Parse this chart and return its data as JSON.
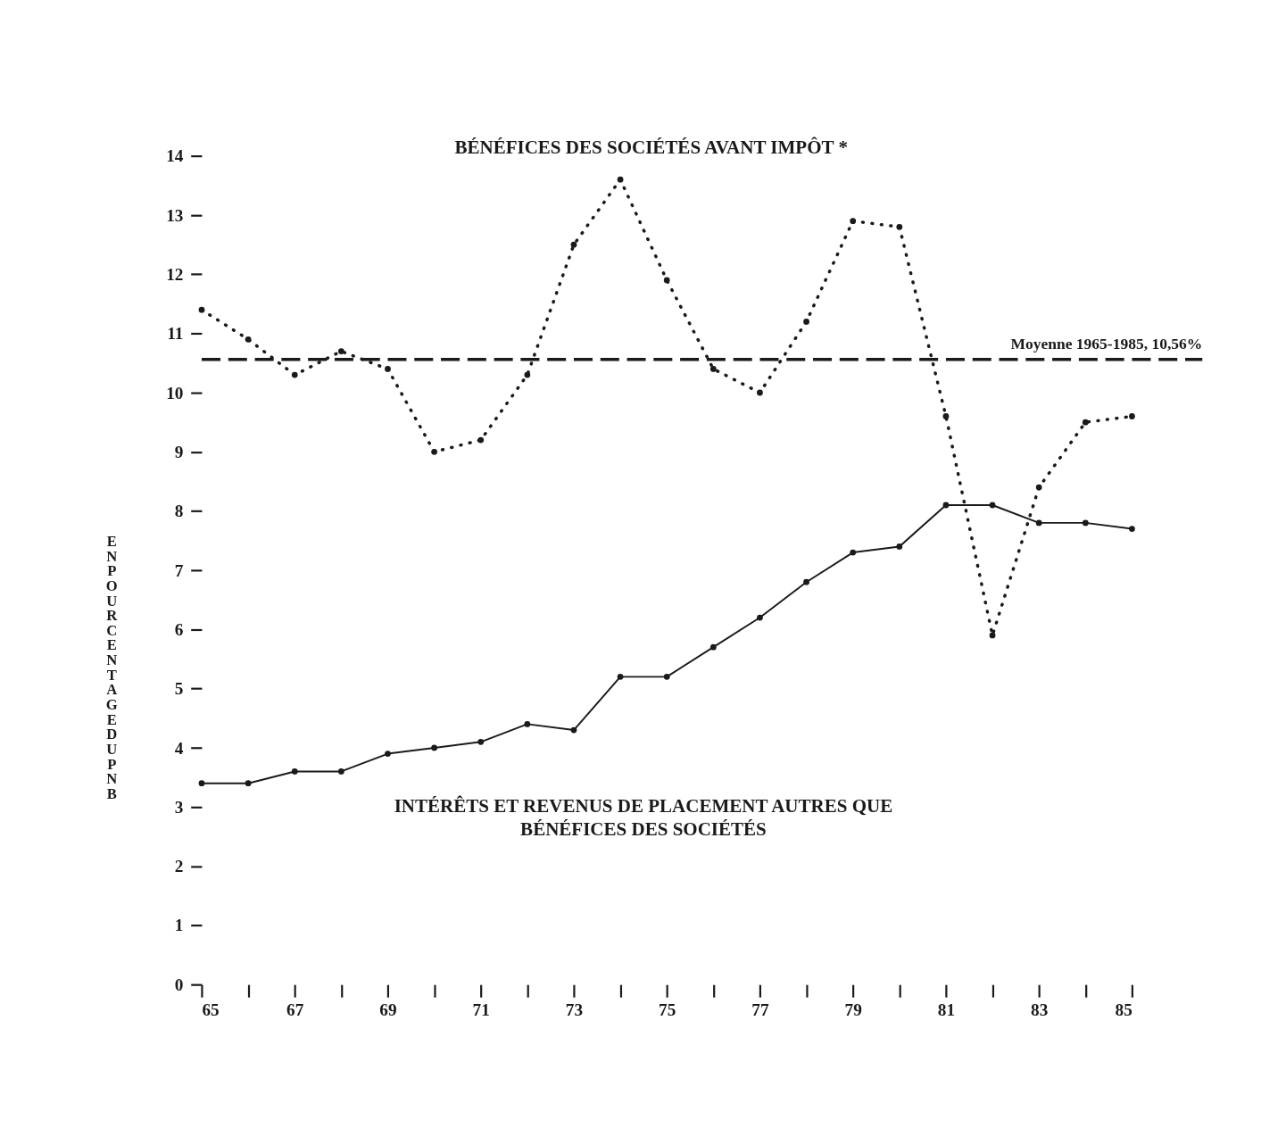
{
  "chart_data": {
    "type": "line",
    "ylabel": "EN POURCENTAGE DU PNB",
    "x": [
      65,
      66,
      67,
      68,
      69,
      70,
      71,
      72,
      73,
      74,
      75,
      76,
      77,
      78,
      79,
      80,
      81,
      82,
      83,
      84,
      85
    ],
    "series": [
      {
        "name": "BÉNÉFICES DES SOCIÉTÉS AVANT IMPÔT *",
        "color": "#1a1a1a",
        "line_style": "dotted",
        "values": [
          11.4,
          10.9,
          10.3,
          10.7,
          10.4,
          9.0,
          9.2,
          10.3,
          12.5,
          13.6,
          11.9,
          10.4,
          10.0,
          11.2,
          12.9,
          12.8,
          9.6,
          5.9,
          8.4,
          9.5,
          9.6
        ]
      },
      {
        "name": "INTÉRÊTS ET REVENUS DE PLACEMENT AUTRES QUE BÉNÉFICES DES SOCIÉTÉS",
        "color": "#1a1a1a",
        "line_style": "solid",
        "values": [
          3.4,
          3.4,
          3.6,
          3.6,
          3.9,
          4.0,
          4.1,
          4.4,
          4.3,
          5.2,
          5.2,
          5.7,
          6.2,
          6.8,
          7.3,
          7.4,
          8.1,
          8.1,
          7.8,
          7.8,
          7.7
        ]
      }
    ],
    "marker": "circle",
    "xlim": [
      65,
      85
    ],
    "xticks": [
      65,
      {
        "value": 66,
        "label": null
      },
      67,
      {
        "value": 68,
        "label": null
      },
      69,
      {
        "value": 70,
        "label": null
      },
      71,
      {
        "value": 72,
        "label": null
      },
      73,
      {
        "value": 74,
        "label": null
      },
      75,
      {
        "value": 76,
        "label": null
      },
      77,
      {
        "value": 78,
        "label": null
      },
      79,
      {
        "value": 80,
        "label": null
      },
      81,
      {
        "value": 82,
        "label": null
      },
      83,
      {
        "value": 84,
        "label": null
      },
      85
    ],
    "ylim": [
      0,
      14
    ],
    "yticks": [
      0,
      1,
      2,
      3,
      4,
      5,
      6,
      7,
      8,
      9,
      10,
      11,
      12,
      13,
      14
    ],
    "ref_lines": [
      {
        "axis": "y",
        "value": 10.56,
        "label": "Moyenne 1965-1985, 10,56%",
        "color": "#1a1a1a",
        "line_style": "dashed"
      }
    ],
    "grid": false
  }
}
